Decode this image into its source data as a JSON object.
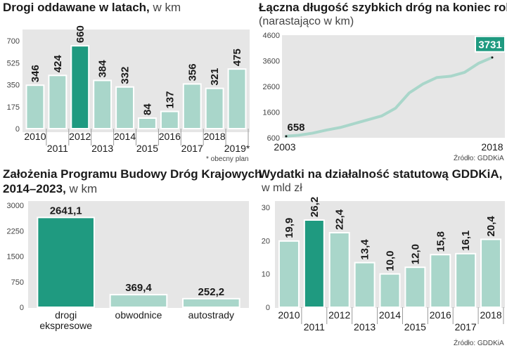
{
  "colors": {
    "bar": "#a9d6ca",
    "bar_highlight": "#1f9a80",
    "bar_stroke": "#ffffff",
    "background": "#e6e6e6",
    "line": "#a9d6ca"
  },
  "panels": {
    "p1": {
      "title": "Drogi oddawane w latach,",
      "unit": " w km",
      "note": "* obecny plan"
    },
    "p2": {
      "title": "Łączna długość szybkich dróg na koniec roku",
      "subtitle": "(narastająco w km)",
      "source": "Źródło: GDDKiA"
    },
    "p3": {
      "title_line1": "Założenia Programu Budowy Dróg Krajowych",
      "title_line2": "2014–2023,",
      "unit": " w km"
    },
    "p4": {
      "title": "Wydatki na działalność statutową GDDKiA,",
      "subtitle": "w mld zł",
      "source": "Źródło: GDDKiA"
    }
  },
  "chart_data": [
    {
      "type": "bar",
      "categories": [
        "2010",
        "2011",
        "2012",
        "2013",
        "2014",
        "2015",
        "2016",
        "2017",
        "2018",
        "2019*"
      ],
      "values": [
        346,
        424,
        660,
        384,
        332,
        84,
        137,
        356,
        321,
        475
      ],
      "value_labels": [
        "346",
        "424",
        "660",
        "384",
        "332",
        "84",
        "137",
        "356",
        "321",
        "475"
      ],
      "highlight_index": 2,
      "yticks": [
        "0",
        "175",
        "350",
        "525",
        "700"
      ],
      "ylim": [
        0,
        700
      ]
    },
    {
      "type": "line",
      "x": [
        2003,
        2004,
        2005,
        2006,
        2007,
        2008,
        2009,
        2010,
        2011,
        2012,
        2013,
        2014,
        2015,
        2016,
        2017,
        2018
      ],
      "y": [
        658,
        700,
        780,
        900,
        1000,
        1150,
        1300,
        1450,
        1750,
        2350,
        2700,
        2950,
        3000,
        3150,
        3500,
        3731
      ],
      "xticks": [
        "2003",
        "2018"
      ],
      "yticks": [
        "600",
        "1600",
        "2600",
        "3600",
        "4600"
      ],
      "ylim": [
        600,
        4600
      ],
      "start_label": "658",
      "end_label": "3731"
    },
    {
      "type": "bar",
      "categories": [
        "drogi ekspresowe",
        "obwodnice",
        "autostrady"
      ],
      "category_lines": [
        [
          "drogi",
          "ekspresowe"
        ],
        [
          "obwodnice"
        ],
        [
          "autostrady"
        ]
      ],
      "values": [
        2641.1,
        369.4,
        252.2
      ],
      "value_labels": [
        "2641,1",
        "369,4",
        "252,2"
      ],
      "highlight_index": 0,
      "yticks": [
        "0",
        "750",
        "1500",
        "2250",
        "3000"
      ],
      "ylim": [
        0,
        3000
      ]
    },
    {
      "type": "bar",
      "categories": [
        "2010",
        "2011",
        "2012",
        "2013",
        "2014",
        "2015",
        "2016",
        "2017",
        "2018"
      ],
      "values": [
        19.9,
        26.2,
        22.4,
        13.4,
        10.0,
        12.0,
        15.8,
        16.1,
        20.4
      ],
      "value_labels": [
        "19,9",
        "26,2",
        "22,4",
        "13,4",
        "10,0",
        "12,0",
        "15,8",
        "16,1",
        "20,4"
      ],
      "highlight_index": 1,
      "yticks": [
        "0",
        "10",
        "20",
        "30"
      ],
      "ylim": [
        0,
        30
      ]
    }
  ]
}
